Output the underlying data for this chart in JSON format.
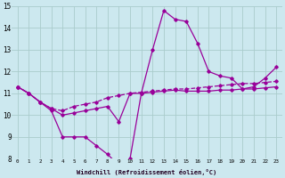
{
  "xlabel": "Windchill (Refroidissement éolien,°C)",
  "xlim": [
    -0.5,
    23.5
  ],
  "ylim": [
    8,
    15
  ],
  "yticks": [
    8,
    9,
    10,
    11,
    12,
    13,
    14,
    15
  ],
  "xticks": [
    0,
    1,
    2,
    3,
    4,
    5,
    6,
    7,
    8,
    9,
    10,
    11,
    12,
    13,
    14,
    15,
    16,
    17,
    18,
    19,
    20,
    21,
    22,
    23
  ],
  "background_color": "#cce8ef",
  "line_color": "#990099",
  "grid_color": "#aacccc",
  "line1": [
    11.3,
    11.0,
    10.6,
    10.2,
    9.0,
    9.0,
    9.0,
    8.6,
    8.2,
    7.7,
    8.0,
    11.0,
    13.0,
    14.8,
    14.4,
    14.3,
    13.3,
    12.0,
    11.8,
    11.7,
    11.2,
    11.3,
    11.7,
    12.2
  ],
  "line2": [
    11.3,
    11.0,
    10.6,
    10.3,
    10.0,
    10.1,
    10.2,
    10.3,
    10.4,
    9.7,
    11.0,
    11.0,
    11.05,
    11.1,
    11.15,
    11.1,
    11.1,
    11.1,
    11.15,
    11.15,
    11.2,
    11.2,
    11.25,
    11.3
  ],
  "line3": [
    11.3,
    11.0,
    10.6,
    10.3,
    10.2,
    10.4,
    10.5,
    10.6,
    10.8,
    10.9,
    11.0,
    11.05,
    11.1,
    11.15,
    11.2,
    11.2,
    11.25,
    11.3,
    11.35,
    11.4,
    11.45,
    11.45,
    11.5,
    11.55
  ]
}
